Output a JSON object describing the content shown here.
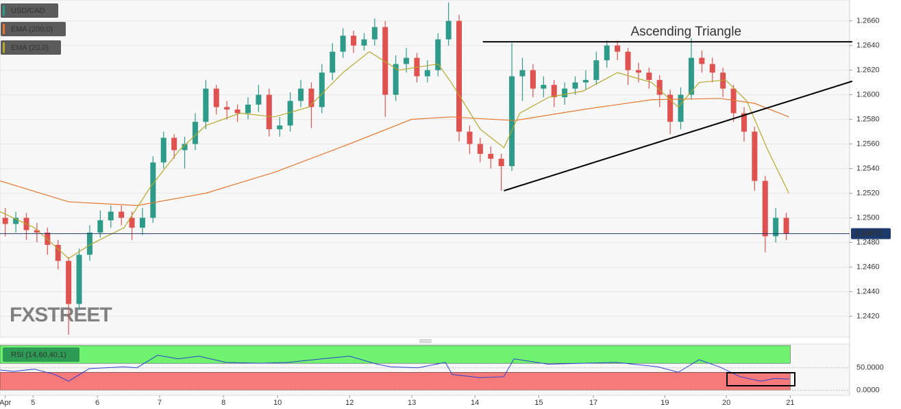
{
  "chart_data": [
    {
      "type": "candlestick",
      "name": "USD/CAD",
      "up_color": "#2e9b8a",
      "down_color": "#e0524f",
      "legend_color": "#2e9b8a",
      "x": [
        2,
        6,
        10,
        14,
        18,
        22,
        26,
        30,
        34,
        38,
        42,
        46,
        50,
        54,
        58,
        62,
        66,
        70,
        74,
        78,
        82,
        86,
        90,
        94,
        98,
        102,
        106,
        110,
        114,
        118,
        122,
        126,
        130,
        134,
        138,
        142,
        146,
        150,
        154,
        158,
        162,
        166,
        170,
        174,
        178,
        182,
        186,
        190,
        194,
        198,
        202,
        206,
        210,
        214,
        218,
        222,
        226,
        230,
        234,
        238,
        242,
        246,
        250,
        254,
        258,
        262,
        266,
        270,
        274,
        278,
        282,
        286,
        290,
        294,
        298
      ],
      "open": [
        1.25,
        1.2495,
        1.25,
        1.249,
        1.2488,
        1.2478,
        1.2465,
        1.243,
        1.247,
        1.2488,
        1.2498,
        1.2505,
        1.25,
        1.2492,
        1.25,
        1.2545,
        1.2565,
        1.2555,
        1.256,
        1.2578,
        1.2605,
        1.259,
        1.2588,
        1.2585,
        1.2592,
        1.26,
        1.2572,
        1.2575,
        1.2595,
        1.2605,
        1.259,
        1.2618,
        1.2635,
        1.2648,
        1.264,
        1.2645,
        1.2655,
        1.26,
        1.2625,
        1.263,
        1.2615,
        1.262,
        1.2645,
        1.266,
        1.257,
        1.256,
        1.2552,
        1.2548,
        1.2542,
        1.2615,
        1.262,
        1.2605,
        1.2608,
        1.2598,
        1.2605,
        1.261,
        1.2612,
        1.2628,
        1.264,
        1.2635,
        1.262,
        1.2618,
        1.2612,
        1.26,
        1.2578,
        1.26,
        1.263,
        1.2625,
        1.2618,
        1.2605,
        1.2585,
        1.257,
        1.253,
        1.2485,
        1.25
      ],
      "high": [
        1.2508,
        1.2505,
        1.2504,
        1.2496,
        1.2492,
        1.2482,
        1.2468,
        1.2475,
        1.2494,
        1.2506,
        1.251,
        1.251,
        1.2505,
        1.2508,
        1.255,
        1.257,
        1.2568,
        1.2566,
        1.2585,
        1.2612,
        1.2608,
        1.2595,
        1.2592,
        1.2598,
        1.2608,
        1.2605,
        1.2582,
        1.2602,
        1.2612,
        1.261,
        1.2625,
        1.2642,
        1.2654,
        1.2652,
        1.265,
        1.2662,
        1.266,
        1.2632,
        1.2638,
        1.2634,
        1.2628,
        1.265,
        1.2675,
        1.2665,
        1.2575,
        1.2565,
        1.2558,
        1.2552,
        1.2642,
        1.263,
        1.2625,
        1.2615,
        1.2612,
        1.261,
        1.2615,
        1.262,
        1.2635,
        1.2644,
        1.2644,
        1.2638,
        1.2626,
        1.2622,
        1.2616,
        1.2604,
        1.2606,
        1.2646,
        1.2636,
        1.263,
        1.2622,
        1.2608,
        1.259,
        1.2574,
        1.2534,
        1.2508,
        1.2504
      ],
      "low": [
        1.2485,
        1.2488,
        1.2482,
        1.248,
        1.247,
        1.2458,
        1.2405,
        1.2425,
        1.2465,
        1.2484,
        1.2492,
        1.2494,
        1.2482,
        1.2486,
        1.2496,
        1.254,
        1.2548,
        1.254,
        1.2555,
        1.2572,
        1.2584,
        1.258,
        1.2578,
        1.258,
        1.2586,
        1.2566,
        1.2566,
        1.257,
        1.259,
        1.2573,
        1.2585,
        1.2612,
        1.263,
        1.2634,
        1.2636,
        1.264,
        1.2582,
        1.2595,
        1.2618,
        1.261,
        1.261,
        1.2615,
        1.264,
        1.2562,
        1.2552,
        1.2545,
        1.254,
        1.2522,
        1.2538,
        1.2595,
        1.2598,
        1.2598,
        1.259,
        1.2592,
        1.26,
        1.2604,
        1.2608,
        1.2622,
        1.2628,
        1.2608,
        1.261,
        1.2605,
        1.259,
        1.2568,
        1.2572,
        1.2596,
        1.2618,
        1.261,
        1.2598,
        1.2578,
        1.2562,
        1.2522,
        1.2472,
        1.248,
        1.2482
      ],
      "close": [
        1.2495,
        1.25,
        1.249,
        1.2488,
        1.2478,
        1.2465,
        1.243,
        1.247,
        1.2488,
        1.2498,
        1.2505,
        1.25,
        1.2492,
        1.25,
        1.2545,
        1.2565,
        1.2555,
        1.256,
        1.2578,
        1.2605,
        1.259,
        1.2588,
        1.2585,
        1.2592,
        1.26,
        1.2572,
        1.2575,
        1.2595,
        1.2605,
        1.259,
        1.2618,
        1.2635,
        1.2648,
        1.264,
        1.2645,
        1.2655,
        1.26,
        1.2625,
        1.263,
        1.2615,
        1.262,
        1.2645,
        1.266,
        1.257,
        1.256,
        1.2552,
        1.2548,
        1.2542,
        1.2615,
        1.262,
        1.2605,
        1.2608,
        1.2598,
        1.2605,
        1.261,
        1.2612,
        1.2628,
        1.264,
        1.2635,
        1.262,
        1.2618,
        1.2612,
        1.26,
        1.2578,
        1.26,
        1.263,
        1.2625,
        1.2618,
        1.2605,
        1.2585,
        1.257,
        1.253,
        1.2485,
        1.25,
        1.2487
      ],
      "overlays": [
        {
          "name": "EMA (200,0)",
          "color": "#e8772e",
          "x": [
            0,
            26,
            52,
            78,
            104,
            130,
            156,
            171,
            195,
            221,
            247,
            273,
            286,
            299
          ],
          "values": [
            1.253,
            1.2513,
            1.251,
            1.252,
            1.2537,
            1.2558,
            1.258,
            1.2582,
            1.2579,
            1.2588,
            1.2596,
            1.2597,
            1.2593,
            1.2582
          ]
        },
        {
          "name": "EMA (20,0)",
          "color": "#b5a82b",
          "x": [
            0,
            13,
            26,
            34,
            47,
            57,
            68,
            78,
            91,
            104,
            117,
            130,
            140,
            151,
            166,
            171,
            182,
            191,
            197,
            208,
            221,
            234,
            247,
            257,
            265,
            275,
            283,
            291,
            299
          ],
          "values": [
            1.2505,
            1.2492,
            1.2467,
            1.2478,
            1.2492,
            1.2525,
            1.2555,
            1.2575,
            1.2585,
            1.2582,
            1.259,
            1.2618,
            1.2635,
            1.262,
            1.2625,
            1.261,
            1.2572,
            1.2557,
            1.2585,
            1.2598,
            1.2603,
            1.2618,
            1.261,
            1.259,
            1.261,
            1.2612,
            1.2595,
            1.2555,
            1.252
          ]
        }
      ],
      "trendlines": [
        {
          "x": [
            183,
            323
          ],
          "y": [
            1.2643,
            1.2643
          ]
        },
        {
          "x": [
            191,
            323
          ],
          "y": [
            1.2522,
            1.2611
          ]
        }
      ],
      "annotation": "Ascending Triangle",
      "annotation_x": 260,
      "annotation_y": 1.2651,
      "last_price": 1.24871,
      "last_price_color": "#1e3a6a",
      "watermark": "FXSTREET",
      "xlim": [
        0,
        322
      ],
      "ylim": [
        1.2403,
        1.2677
      ],
      "grid": true,
      "yticks": [
        {
          "value": 1.242,
          "label": "1.2420"
        },
        {
          "value": 1.244,
          "label": "1.2440"
        },
        {
          "value": 1.246,
          "label": "1.2460"
        },
        {
          "value": 1.248,
          "label": "1.2480"
        },
        {
          "value": 1.25,
          "label": "1.2500"
        },
        {
          "value": 1.252,
          "label": "1.2520"
        },
        {
          "value": 1.254,
          "label": "1.2540"
        },
        {
          "value": 1.256,
          "label": "1.2560"
        },
        {
          "value": 1.258,
          "label": "1.2580"
        },
        {
          "value": 1.26,
          "label": "1.2600"
        },
        {
          "value": 1.262,
          "label": "1.2620"
        },
        {
          "value": 1.264,
          "label": "1.2640"
        },
        {
          "value": 1.266,
          "label": "1.2660"
        }
      ]
    },
    {
      "type": "line",
      "title": "RSI (14,60,40,1)",
      "title_color": "#2e9b55",
      "bands": [
        {
          "from": 60,
          "to": 100,
          "color": "#6ff26f"
        },
        {
          "from": 0,
          "to": 40,
          "color": "#f77a7a"
        }
      ],
      "series": [
        {
          "color": "#2b3fd6",
          "x": [
            0,
            5.2,
            13,
            20.8,
            26,
            33.8,
            46.8,
            51.9,
            59.7,
            67.5,
            75.3,
            85.7,
            98.7,
            109.1,
            122.1,
            132.5,
            142.9,
            148.1,
            158.4,
            168.8,
            171.4,
            181.8,
            190.9,
            194.8,
            207.8,
            220.8,
            233.8,
            249.4,
            257.1,
            264.9,
            272.7,
            280.5,
            288.3,
            293.5,
            299.2
          ],
          "values": [
            45,
            42,
            47,
            35,
            20,
            48,
            52,
            50,
            78,
            70,
            76,
            62,
            60,
            62,
            70,
            76,
            58,
            52,
            50,
            62,
            35,
            28,
            30,
            70,
            58,
            60,
            62,
            52,
            40,
            68,
            52,
            30,
            20,
            26,
            25
          ]
        }
      ],
      "xlim": [
        0,
        322
      ],
      "ylim": [
        -10,
        100
      ],
      "yticks": [
        {
          "value": 50,
          "label": "50.0000"
        },
        {
          "value": 0,
          "label": "0.0000"
        }
      ],
      "xticks": [
        {
          "value": 2,
          "label": "Apr"
        },
        {
          "value": 12.5,
          "label": "5"
        },
        {
          "value": 36.9,
          "label": "6"
        },
        {
          "value": 60.5,
          "label": "7"
        },
        {
          "value": 84.7,
          "label": "8"
        },
        {
          "value": 105.2,
          "label": "10"
        },
        {
          "value": 132.5,
          "label": "12"
        },
        {
          "value": 156.1,
          "label": "13"
        },
        {
          "value": 180,
          "label": "14"
        },
        {
          "value": 204.2,
          "label": "15"
        },
        {
          "value": 224.9,
          "label": "17"
        },
        {
          "value": 252,
          "label": "19"
        },
        {
          "value": 275.3,
          "label": "20"
        },
        {
          "value": 299.5,
          "label": "21"
        }
      ]
    }
  ]
}
